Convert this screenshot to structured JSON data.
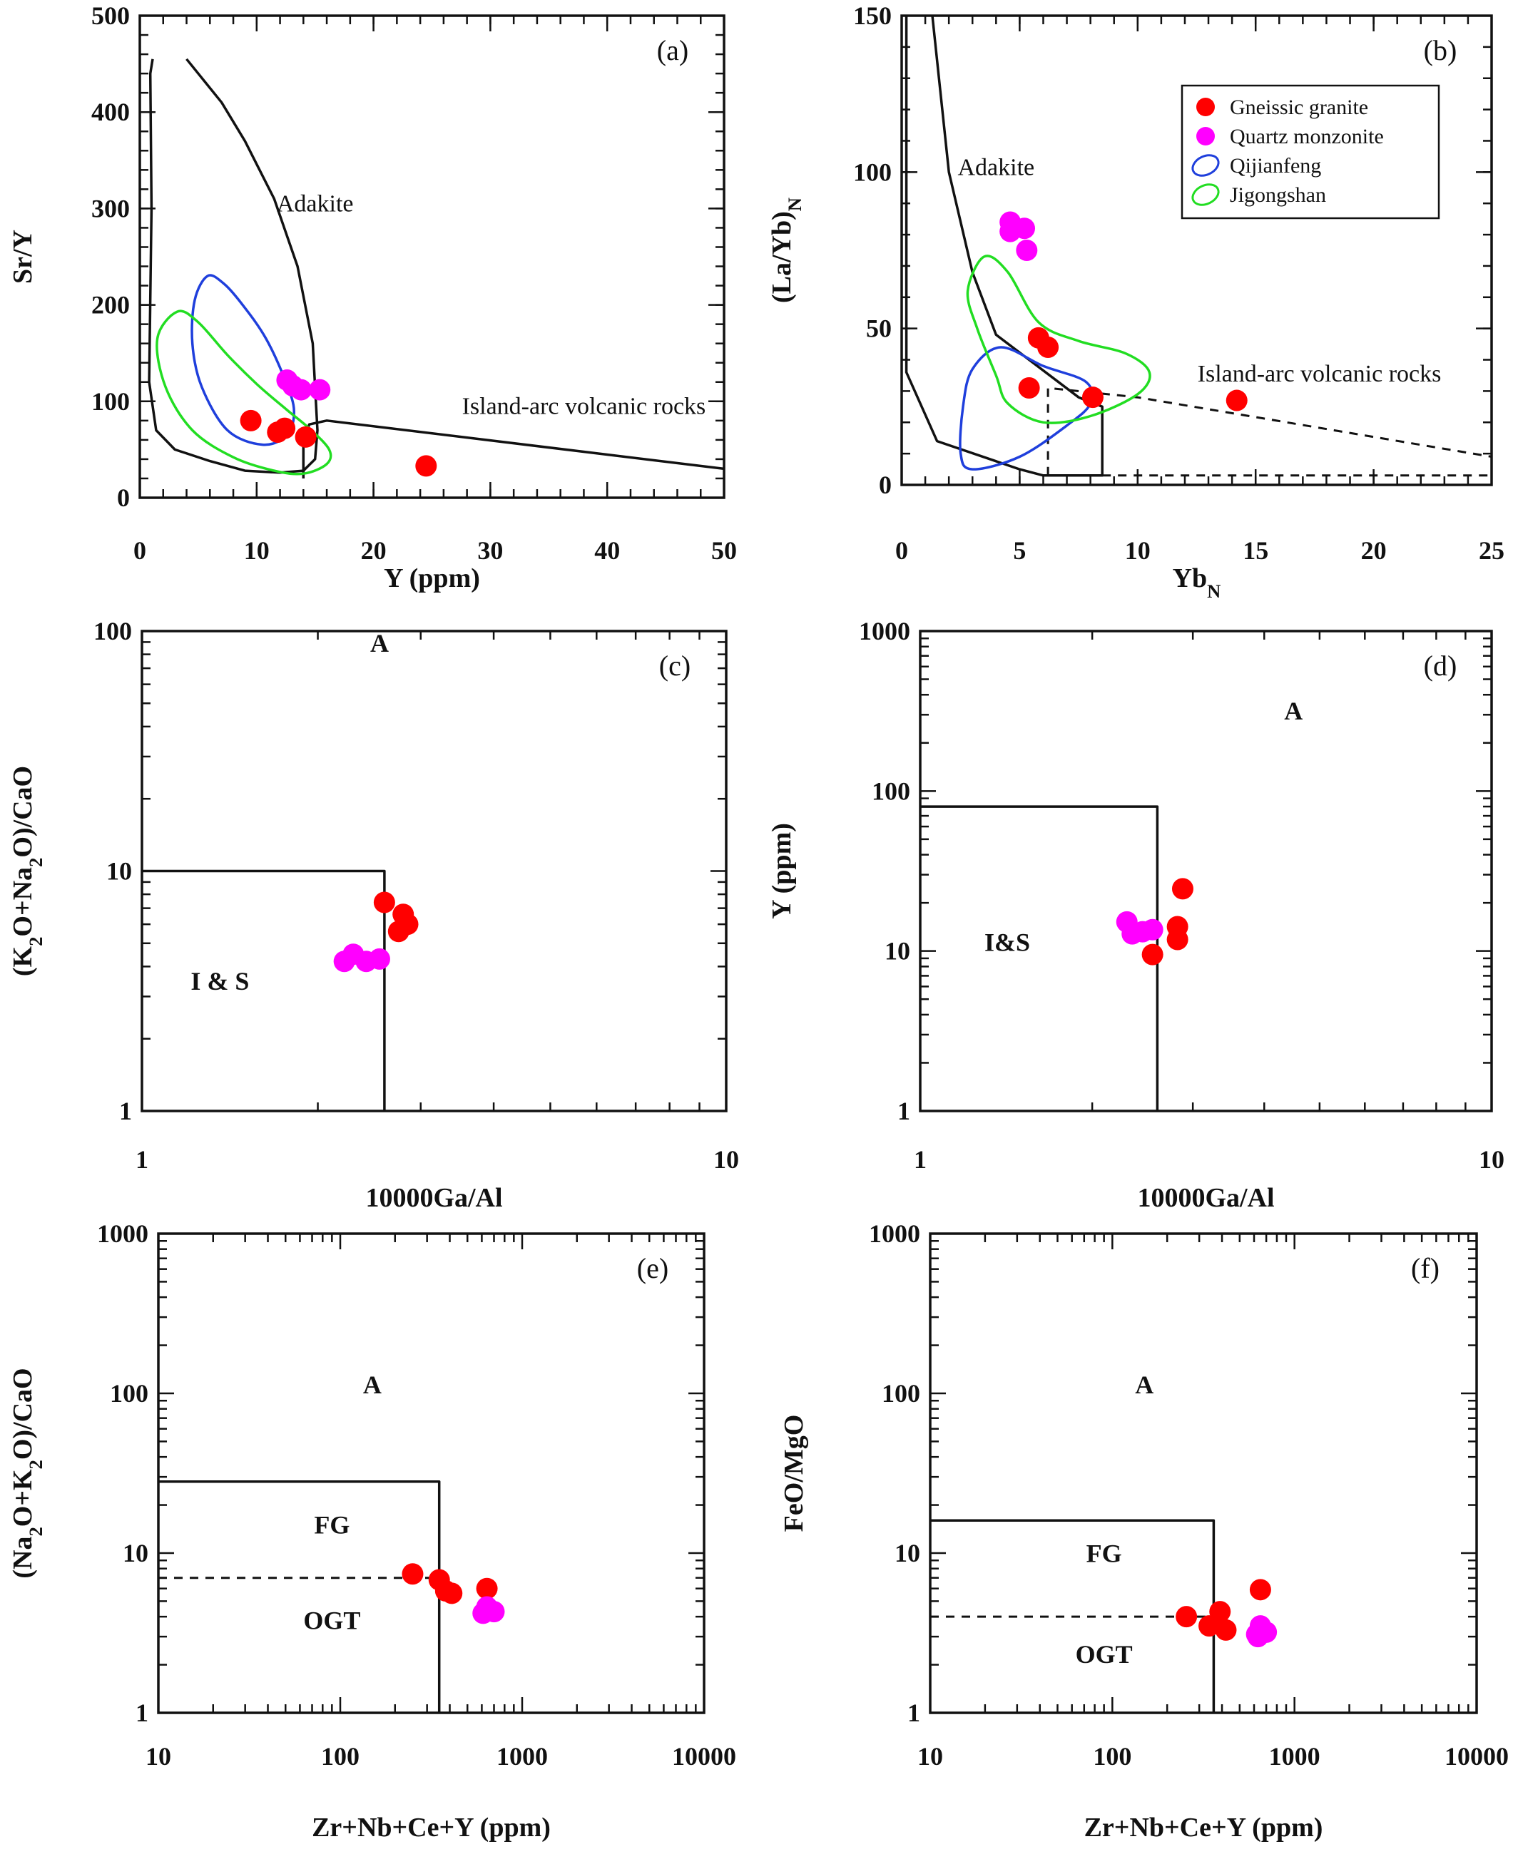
{
  "colors": {
    "gneissic_granite": "#ff0000",
    "quartz_monzonite": "#ff00ff",
    "qijianfeng": "#1f3fdc",
    "jigongshan": "#22dd22",
    "axes": "#111111"
  },
  "legend": {
    "placement": "top-right of panel (b)",
    "entries": [
      {
        "label": "Gneissic granite",
        "marker": "filled circle",
        "color": "#ff0000"
      },
      {
        "label": "Quartz monzonite",
        "marker": "filled circle",
        "color": "#ff00ff"
      },
      {
        "label": "Qijianfeng",
        "marker": "open ellipse",
        "color": "#1f3fdc"
      },
      {
        "label": "Jigongshan",
        "marker": "open ellipse",
        "color": "#22dd22"
      }
    ]
  },
  "chart_data": [
    {
      "id": "a",
      "panel_tag": "(a)",
      "type": "scatter",
      "xlabel": "Y (ppm)",
      "ylabel": "Sr/Y",
      "xscale": "linear",
      "yscale": "linear",
      "xlim": [
        0,
        50
      ],
      "ylim": [
        0,
        500
      ],
      "xticks": [
        0,
        10,
        20,
        30,
        40,
        50
      ],
      "yticks": [
        0,
        100,
        200,
        300,
        400,
        500
      ],
      "xticklabels": [
        "0",
        "10",
        "20",
        "30",
        "40",
        "50"
      ],
      "yticklabels": [
        "0",
        "100",
        "200",
        "300",
        "400",
        "500"
      ],
      "field_labels": [
        {
          "text": "Adakite",
          "x": 15,
          "y": 297,
          "bold": false
        },
        {
          "text": "Island-arc volcanic rocks",
          "x": 38,
          "y": 87,
          "bold": false
        }
      ],
      "boundaries": [
        {
          "style": "solid",
          "points": [
            [
              1.1,
              455
            ],
            [
              0.9,
              440
            ],
            [
              1.0,
              300
            ],
            [
              0.8,
              120
            ],
            [
              1.4,
              70
            ],
            [
              3,
              50
            ],
            [
              6,
              38
            ],
            [
              9,
              28
            ],
            [
              12,
              26
            ],
            [
              14,
              28
            ],
            [
              15,
              40
            ],
            [
              15.2,
              70
            ],
            [
              14.8,
              160
            ],
            [
              13.5,
              240
            ],
            [
              11.5,
              310
            ],
            [
              9,
              370
            ],
            [
              7,
              410
            ],
            [
              4,
              455
            ]
          ]
        },
        {
          "style": "solid",
          "points": [
            [
              14,
              60
            ],
            [
              14.5,
              76
            ],
            [
              16,
              80
            ],
            [
              50,
              30
            ]
          ]
        },
        {
          "style": "solid",
          "points": [
            [
              14,
              60
            ],
            [
              14,
              20
            ]
          ]
        },
        {
          "style": "solid",
          "points": [
            [
              50,
              28
            ],
            [
              50,
              28
            ]
          ]
        }
      ],
      "regions": [
        {
          "name": "Qijianfeng",
          "points": [
            [
              5.8,
              230
            ],
            [
              7.2,
              222
            ],
            [
              8.8,
              200
            ],
            [
              10.8,
              165
            ],
            [
              12.5,
              120
            ],
            [
              13.2,
              90
            ],
            [
              12.6,
              65
            ],
            [
              10.5,
              55
            ],
            [
              7.5,
              70
            ],
            [
              5.3,
              115
            ],
            [
              4.5,
              160
            ],
            [
              4.7,
              205
            ]
          ]
        },
        {
          "name": "Jigongshan",
          "points": [
            [
              3.2,
              193
            ],
            [
              5,
              182
            ],
            [
              7.5,
              148
            ],
            [
              10,
              118
            ],
            [
              12.5,
              92
            ],
            [
              14.5,
              72
            ],
            [
              16.2,
              50
            ],
            [
              16,
              35
            ],
            [
              14,
              25
            ],
            [
              11.5,
              28
            ],
            [
              8,
              42
            ],
            [
              4.5,
              70
            ],
            [
              2.2,
              115
            ],
            [
              1.5,
              165
            ]
          ]
        }
      ],
      "series": [
        {
          "name": "Gneissic granite",
          "points": [
            [
              9.5,
              80
            ],
            [
              11.8,
              68
            ],
            [
              12.4,
              72
            ],
            [
              14.2,
              63
            ],
            [
              24.5,
              33
            ]
          ]
        },
        {
          "name": "Quartz monzonite",
          "points": [
            [
              12.6,
              122
            ],
            [
              13.1,
              116
            ],
            [
              13.8,
              112
            ],
            [
              15.4,
              112
            ]
          ]
        }
      ]
    },
    {
      "id": "b",
      "panel_tag": "(b)",
      "type": "scatter",
      "xlabel": "YbN",
      "ylabel": "(La/Yb)N",
      "xscale": "linear",
      "yscale": "linear",
      "xlim": [
        0,
        25
      ],
      "ylim": [
        0,
        150
      ],
      "xticks": [
        0,
        5,
        10,
        15,
        20,
        25
      ],
      "yticks": [
        0,
        50,
        100,
        150
      ],
      "xticklabels": [
        "0",
        "5",
        "10",
        "15",
        "20",
        "25"
      ],
      "yticklabels": [
        "0",
        "50",
        "100",
        "150"
      ],
      "field_labels": [
        {
          "text": "Adakite",
          "x": 4,
          "y": 99,
          "bold": false
        },
        {
          "text": "Island-arc volcanic rocks",
          "x": 17.7,
          "y": 33,
          "bold": false
        }
      ],
      "boundaries": [
        {
          "style": "solid",
          "points": [
            [
              0.2,
              150
            ],
            [
              0.2,
              36
            ],
            [
              1.5,
              14
            ],
            [
              5,
              5
            ],
            [
              6,
              3
            ],
            [
              8.5,
              3
            ],
            [
              8.5,
              25
            ],
            [
              7.5,
              28
            ],
            [
              4,
              48
            ],
            [
              3,
              68
            ],
            [
              2,
              100
            ],
            [
              1.3,
              150
            ]
          ]
        },
        {
          "style": "dashed",
          "points": [
            [
              6.2,
              3
            ],
            [
              6.2,
              31
            ],
            [
              10,
              28
            ],
            [
              25,
              9
            ]
          ]
        },
        {
          "style": "dashed",
          "points": [
            [
              8.5,
              3
            ],
            [
              25,
              3
            ]
          ]
        }
      ],
      "regions": [
        {
          "name": "Qijianfeng",
          "points": [
            [
              4.2,
              44
            ],
            [
              6,
              38
            ],
            [
              7.8,
              33
            ],
            [
              8,
              26
            ],
            [
              7,
              19
            ],
            [
              5,
              9
            ],
            [
              3,
              5
            ],
            [
              2.5,
              10
            ],
            [
              2.6,
              25
            ],
            [
              3,
              37
            ]
          ]
        },
        {
          "name": "Jigongshan",
          "points": [
            [
              3.5,
              73
            ],
            [
              4.5,
              68
            ],
            [
              5.8,
              52
            ],
            [
              7.5,
              46
            ],
            [
              9.5,
              42
            ],
            [
              10.5,
              36
            ],
            [
              10,
              29
            ],
            [
              8,
              22
            ],
            [
              6,
              20
            ],
            [
              4.5,
              26
            ],
            [
              4,
              35
            ],
            [
              3.2,
              50
            ],
            [
              2.8,
              62
            ]
          ]
        }
      ],
      "series": [
        {
          "name": "Gneissic granite",
          "points": [
            [
              5.8,
              47
            ],
            [
              6.2,
              44
            ],
            [
              5.4,
              31
            ],
            [
              8.1,
              28
            ],
            [
              14.2,
              27
            ]
          ]
        },
        {
          "name": "Quartz monzonite",
          "points": [
            [
              4.6,
              84
            ],
            [
              4.6,
              81
            ],
            [
              5.2,
              82
            ],
            [
              5.3,
              75
            ]
          ]
        }
      ]
    },
    {
      "id": "c",
      "panel_tag": "(c)",
      "type": "scatter",
      "xlabel": "10000Ga/Al",
      "ylabel": "(K2O+Na2O)/CaO",
      "xscale": "log",
      "yscale": "log",
      "xlim": [
        1,
        10
      ],
      "ylim": [
        1,
        100
      ],
      "xticks": [
        1,
        10
      ],
      "yticks": [
        1,
        10,
        100
      ],
      "xticklabels": [
        "1",
        "10"
      ],
      "yticklabels": [
        "1",
        "10",
        "100"
      ],
      "field_labels": [
        {
          "text": "A",
          "x": 2.55,
          "y": 82,
          "bold": true
        },
        {
          "text": "I & S",
          "x": 1.36,
          "y": 3.2,
          "bold": true
        }
      ],
      "boundaries": [
        {
          "style": "solid",
          "points": [
            [
              1,
              10
            ],
            [
              2.6,
              10
            ],
            [
              2.6,
              1
            ]
          ]
        }
      ],
      "regions": [],
      "series": [
        {
          "name": "Gneissic granite",
          "points": [
            [
              2.6,
              7.4
            ],
            [
              2.8,
              6.6
            ],
            [
              2.85,
              6.0
            ],
            [
              2.75,
              5.6
            ]
          ]
        },
        {
          "name": "Quartz monzonite",
          "points": [
            [
              2.22,
              4.2
            ],
            [
              2.3,
              4.5
            ],
            [
              2.42,
              4.2
            ],
            [
              2.55,
              4.3
            ]
          ]
        }
      ]
    },
    {
      "id": "d",
      "panel_tag": "(d)",
      "type": "scatter",
      "xlabel": "10000Ga/Al",
      "ylabel": "Y (ppm)",
      "xscale": "log",
      "yscale": "log",
      "xlim": [
        1,
        10
      ],
      "ylim": [
        1,
        1000
      ],
      "xticks": [
        1,
        10
      ],
      "yticks": [
        1,
        10,
        100,
        1000
      ],
      "xticklabels": [
        "1",
        "10"
      ],
      "yticklabels": [
        "1",
        "10",
        "100",
        "1000"
      ],
      "field_labels": [
        {
          "text": "A",
          "x": 4.5,
          "y": 280,
          "bold": true
        },
        {
          "text": "I&S",
          "x": 1.42,
          "y": 10,
          "bold": true
        }
      ],
      "boundaries": [
        {
          "style": "solid",
          "points": [
            [
              1,
              80
            ],
            [
              2.6,
              80
            ],
            [
              2.6,
              1
            ]
          ]
        }
      ],
      "regions": [],
      "series": [
        {
          "name": "Gneissic granite",
          "points": [
            [
              2.88,
              24.5
            ],
            [
              2.82,
              14.2
            ],
            [
              2.82,
              11.8
            ],
            [
              2.55,
              9.5
            ]
          ]
        },
        {
          "name": "Quartz monzonite",
          "points": [
            [
              2.3,
              15.2
            ],
            [
              2.35,
              12.8
            ],
            [
              2.45,
              13.2
            ],
            [
              2.55,
              13.6
            ]
          ]
        }
      ]
    },
    {
      "id": "e",
      "panel_tag": "(e)",
      "type": "scatter",
      "xlabel": "Zr+Nb+Ce+Y (ppm)",
      "ylabel": "(Na2O+K2O)/CaO",
      "xscale": "log",
      "yscale": "log",
      "xlim": [
        10,
        10000
      ],
      "ylim": [
        1,
        1000
      ],
      "xticks": [
        10,
        100,
        1000,
        10000
      ],
      "yticks": [
        1,
        10,
        100,
        1000
      ],
      "xticklabels": [
        "10",
        "100",
        "1000",
        "10000"
      ],
      "yticklabels": [
        "1",
        "10",
        "100",
        "1000"
      ],
      "field_labels": [
        {
          "text": "A",
          "x": 150,
          "y": 100,
          "bold": true
        },
        {
          "text": "FG",
          "x": 90,
          "y": 13.3,
          "bold": true
        },
        {
          "text": "OGT",
          "x": 90,
          "y": 3.35,
          "bold": true
        }
      ],
      "boundaries": [
        {
          "style": "solid",
          "points": [
            [
              10,
              28
            ],
            [
              350,
              28
            ],
            [
              350,
              1
            ]
          ]
        },
        {
          "style": "dashed",
          "points": [
            [
              10,
              7
            ],
            [
              350,
              7
            ]
          ]
        }
      ],
      "regions": [],
      "series": [
        {
          "name": "Gneissic granite",
          "points": [
            [
              250,
              7.4
            ],
            [
              350,
              6.8
            ],
            [
              380,
              5.8
            ],
            [
              410,
              5.6
            ],
            [
              640,
              6.0
            ]
          ]
        },
        {
          "name": "Quartz monzonite",
          "points": [
            [
              610,
              4.2
            ],
            [
              640,
              4.6
            ],
            [
              700,
              4.3
            ]
          ]
        }
      ]
    },
    {
      "id": "f",
      "panel_tag": "(f)",
      "type": "scatter",
      "xlabel": "Zr+Nb+Ce+Y (ppm)",
      "ylabel": "FeO/MgO",
      "xscale": "log",
      "yscale": "log",
      "xlim": [
        10,
        10000
      ],
      "ylim": [
        1,
        1000
      ],
      "xticks": [
        10,
        100,
        1000,
        10000
      ],
      "yticks": [
        1,
        10,
        100,
        1000
      ],
      "xticklabels": [
        "10",
        "100",
        "1000",
        "10000"
      ],
      "yticklabels": [
        "1",
        "10",
        "100",
        "1000"
      ],
      "field_labels": [
        {
          "text": "A",
          "x": 150,
          "y": 100,
          "bold": true
        },
        {
          "text": "FG",
          "x": 90,
          "y": 8.8,
          "bold": true
        },
        {
          "text": "OGT",
          "x": 90,
          "y": 2.05,
          "bold": true
        }
      ],
      "boundaries": [
        {
          "style": "solid",
          "points": [
            [
              10,
              16
            ],
            [
              360,
              16
            ],
            [
              360,
              1
            ]
          ]
        },
        {
          "style": "dashed",
          "points": [
            [
              10,
              4
            ],
            [
              360,
              4
            ]
          ]
        }
      ],
      "regions": [],
      "series": [
        {
          "name": "Gneissic granite",
          "points": [
            [
              255,
              4.0
            ],
            [
              340,
              3.5
            ],
            [
              390,
              4.3
            ],
            [
              420,
              3.3
            ],
            [
              650,
              5.9
            ]
          ]
        },
        {
          "name": "Quartz monzonite",
          "points": [
            [
              620,
              3.1
            ],
            [
              650,
              3.5
            ],
            [
              700,
              3.2
            ],
            [
              630,
              3.0
            ]
          ]
        }
      ]
    }
  ]
}
